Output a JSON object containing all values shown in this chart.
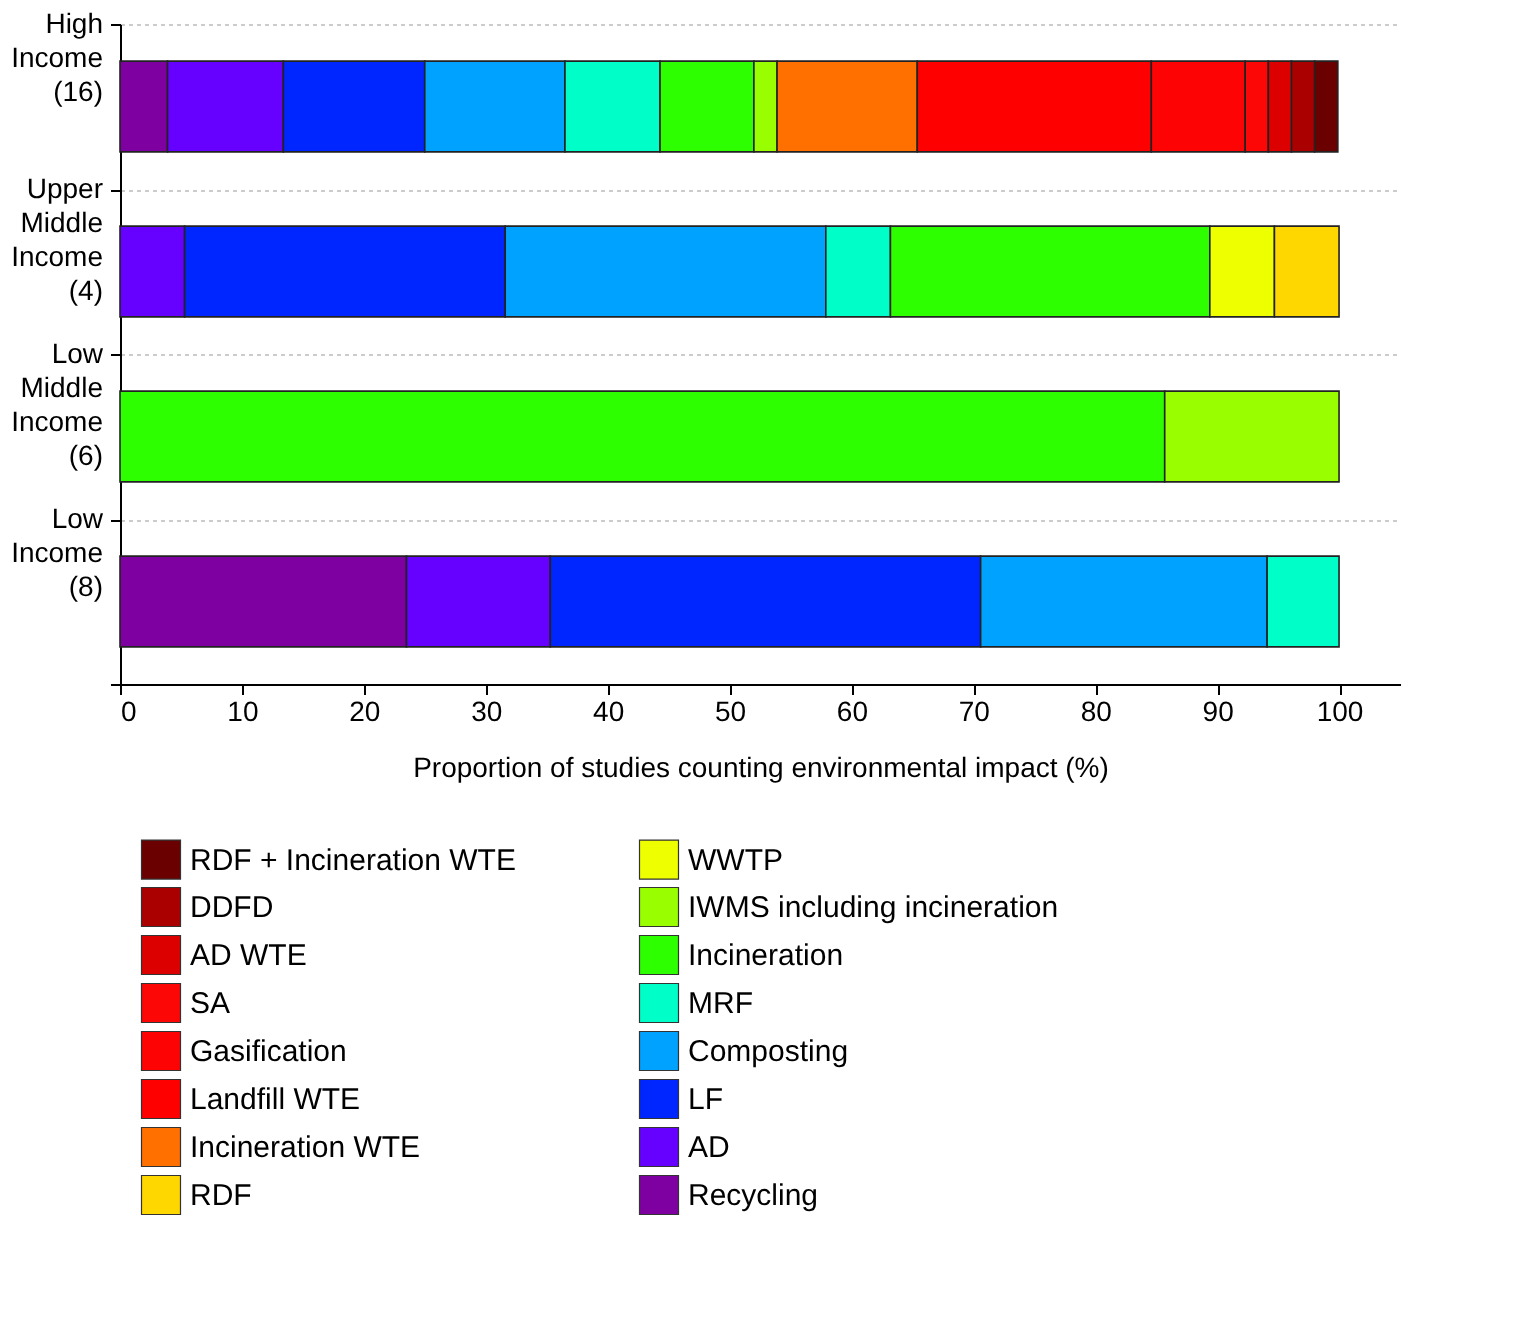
{
  "chart_data": {
    "type": "bar",
    "orientation": "horizontal",
    "stacked": true,
    "categories": [
      "High Income (16)",
      "Upper Middle Income (4)",
      "Low Middle Income (6)",
      "Low Income (8)"
    ],
    "xlabel": "Proportion of studies counting environmental impact (%)",
    "xlim": [
      0,
      105
    ],
    "xticks": [
      0,
      10,
      20,
      30,
      40,
      50,
      60,
      70,
      80,
      90,
      100
    ],
    "grid": "y",
    "legend": "bottom",
    "series": [
      {
        "name": "Recycling",
        "color": "#7f00a0",
        "values": [
          3.9,
          null,
          null,
          23.5
        ]
      },
      {
        "name": "AD",
        "color": "#6600ff",
        "values": [
          9.5,
          5.3,
          null,
          11.8
        ]
      },
      {
        "name": "LF",
        "color": "#0026ff",
        "values": [
          11.6,
          26.3,
          null,
          35.3
        ]
      },
      {
        "name": "Composting",
        "color": "#00a2ff",
        "values": [
          11.5,
          26.3,
          null,
          23.5
        ]
      },
      {
        "name": "MRF",
        "color": "#00ffc8",
        "values": [
          7.8,
          5.3,
          null,
          5.9
        ]
      },
      {
        "name": "Incineration",
        "color": "#2eff00",
        "values": [
          7.7,
          26.2,
          85.7,
          null
        ]
      },
      {
        "name": "IWMS including incineration",
        "color": "#99ff00",
        "values": [
          1.9,
          null,
          14.3,
          null
        ]
      },
      {
        "name": "WWTP",
        "color": "#eeff00",
        "values": [
          null,
          5.3,
          null,
          null
        ]
      },
      {
        "name": "RDF",
        "color": "#ffd700",
        "values": [
          null,
          5.3,
          null,
          null
        ]
      },
      {
        "name": "Incineration WTE",
        "color": "#ff7000",
        "values": [
          11.5,
          null,
          null,
          null
        ]
      },
      {
        "name": "Landfill WTE",
        "color": "#ff0000",
        "values": [
          19.2,
          null,
          null,
          null
        ]
      },
      {
        "name": "Gasification",
        "color": "#fe0303",
        "values": [
          7.7,
          null,
          null,
          null
        ]
      },
      {
        "name": "SA",
        "color": "#fd0606",
        "values": [
          1.9,
          null,
          null,
          null
        ]
      },
      {
        "name": "AD WTE",
        "color": "#dd0000",
        "values": [
          1.9,
          null,
          null,
          null
        ]
      },
      {
        "name": "DDFD",
        "color": "#aa0000",
        "values": [
          1.9,
          null,
          null,
          null
        ]
      },
      {
        "name": "RDF + Incineration WTE",
        "color": "#6b0000",
        "values": [
          1.9,
          null,
          null,
          null
        ]
      }
    ]
  }
}
